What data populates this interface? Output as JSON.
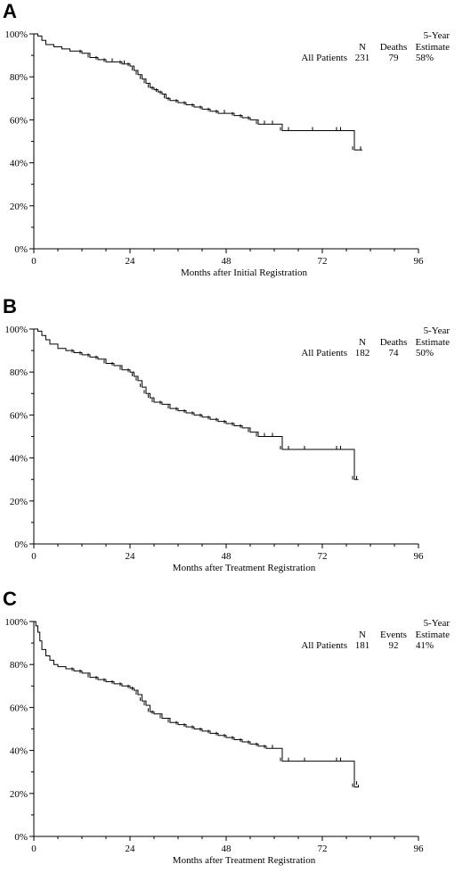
{
  "chart_data": [
    {
      "type": "line",
      "panel_label": "A",
      "xlabel": "Months after Initial Registration",
      "x_ticks": [
        0,
        24,
        48,
        72,
        96
      ],
      "y_ticks": [
        "0%",
        "20%",
        "40%",
        "60%",
        "80%",
        "100%"
      ],
      "xlim": [
        0,
        96
      ],
      "ylim": [
        0,
        100
      ],
      "table": {
        "headers": [
          "N",
          "Deaths",
          "Estimate"
        ],
        "header_top": "5-Year",
        "row_label": "All Patients",
        "values": [
          "231",
          "79",
          "58%"
        ]
      },
      "series": [
        {
          "x": [
            0,
            1,
            2,
            3,
            5,
            7,
            9,
            12,
            14,
            16,
            18,
            20,
            22,
            23,
            24,
            25,
            26,
            27,
            28,
            29,
            30,
            31,
            32,
            33,
            34,
            36,
            38,
            40,
            42,
            44,
            46,
            48,
            50,
            52,
            54,
            56,
            58,
            60,
            62,
            64,
            70,
            76,
            77,
            80,
            82
          ],
          "y": [
            100,
            99,
            97,
            95,
            94,
            93,
            92,
            91,
            89,
            88,
            87,
            87,
            86,
            86,
            85,
            83,
            81,
            79,
            77,
            75,
            74,
            73,
            72,
            70,
            69,
            68,
            67,
            66,
            65,
            64,
            63,
            63,
            62,
            61,
            60,
            58,
            58,
            58,
            55,
            55,
            55,
            55,
            55,
            46,
            46
          ]
        }
      ]
    },
    {
      "type": "line",
      "panel_label": "B",
      "xlabel": "Months after Treatment Registration",
      "x_ticks": [
        0,
        24,
        48,
        72,
        96
      ],
      "y_ticks": [
        "0%",
        "20%",
        "40%",
        "60%",
        "80%",
        "100%"
      ],
      "xlim": [
        0,
        96
      ],
      "ylim": [
        0,
        100
      ],
      "table": {
        "headers": [
          "N",
          "Deaths",
          "Estimate"
        ],
        "header_top": "5-Year",
        "row_label": "All Patients",
        "values": [
          "182",
          "74",
          "50%"
        ]
      },
      "series": [
        {
          "x": [
            0,
            1,
            2,
            3,
            4,
            6,
            8,
            10,
            12,
            14,
            16,
            18,
            20,
            22,
            24,
            25,
            26,
            27,
            28,
            29,
            30,
            32,
            34,
            36,
            38,
            40,
            42,
            44,
            46,
            48,
            50,
            52,
            54,
            56,
            58,
            60,
            62,
            64,
            68,
            76,
            77,
            80,
            81
          ],
          "y": [
            100,
            99,
            97,
            95,
            93,
            91,
            90,
            89,
            88,
            87,
            86,
            84,
            83,
            81,
            80,
            78,
            76,
            73,
            70,
            68,
            66,
            65,
            63,
            62,
            61,
            60,
            59,
            58,
            57,
            56,
            55,
            54,
            52,
            50,
            50,
            50,
            44,
            44,
            44,
            44,
            44,
            30,
            30
          ]
        }
      ]
    },
    {
      "type": "line",
      "panel_label": "C",
      "xlabel": "Months after Treatment Registration",
      "x_ticks": [
        0,
        24,
        48,
        72,
        96
      ],
      "y_ticks": [
        "0%",
        "20%",
        "40%",
        "60%",
        "80%",
        "100%"
      ],
      "xlim": [
        0,
        96
      ],
      "ylim": [
        0,
        100
      ],
      "table": {
        "headers": [
          "N",
          "Events",
          "Estimate"
        ],
        "header_top": "5-Year",
        "row_label": "All Patients",
        "values": [
          "181",
          "92",
          "41%"
        ]
      },
      "series": [
        {
          "x": [
            0,
            0.5,
            1,
            1.5,
            2,
            3,
            4,
            5,
            6,
            8,
            10,
            12,
            14,
            16,
            18,
            20,
            22,
            24,
            25,
            26,
            27,
            28,
            29,
            30,
            32,
            34,
            36,
            38,
            40,
            42,
            44,
            46,
            48,
            50,
            52,
            54,
            56,
            58,
            60,
            62,
            64,
            68,
            76,
            77,
            80,
            81
          ],
          "y": [
            100,
            98,
            95,
            91,
            87,
            84,
            82,
            80,
            79,
            78,
            77,
            76,
            74,
            73,
            72,
            71,
            70,
            69,
            68,
            66,
            63,
            61,
            58,
            57,
            55,
            53,
            52,
            51,
            50,
            49,
            48,
            47,
            46,
            45,
            44,
            43,
            42,
            41,
            41,
            35,
            35,
            35,
            35,
            35,
            23,
            24
          ]
        }
      ]
    }
  ]
}
